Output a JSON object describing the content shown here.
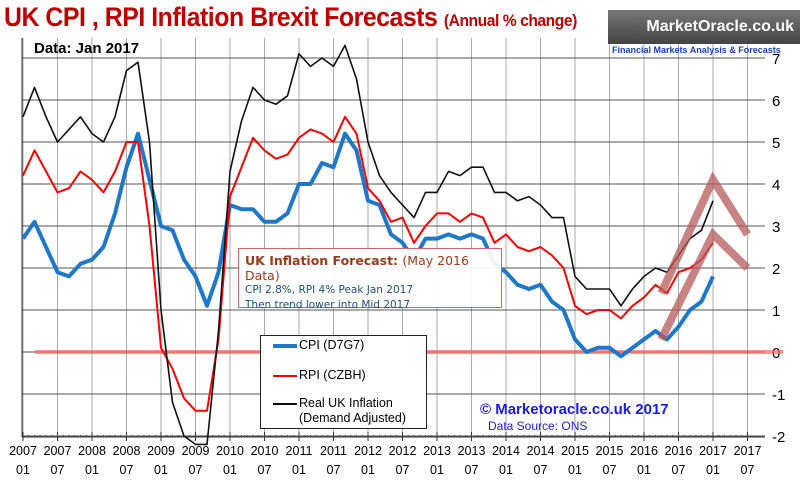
{
  "title": {
    "main": "UK CPI , RPI Inflation Brexit Forecasts",
    "sub": "(Annual % change)"
  },
  "data_label": "Data:  Jan 2017",
  "logo": {
    "name": "MarketOracle.co.uk",
    "tagline": "Financial Markets Analysis & Forecasts"
  },
  "forecast_box": {
    "heading": "UK Inflation Forecast:",
    "heading_note": "(May 2016 Data)",
    "line1": "CPI 2.8%, RPI 4% Peak Jan 2017",
    "line2": "Then trend lower into Mid 2017"
  },
  "copyright": "© Marketoracle.co.uk 2017",
  "source": "Data Source: ONS",
  "chart_data": {
    "type": "line",
    "title": "UK CPI , RPI Inflation Brexit Forecasts (Annual % change)",
    "ylim": [
      -2,
      7.4
    ],
    "yticks": [
      -2,
      -1,
      0,
      1,
      2,
      3,
      4,
      5,
      6,
      7
    ],
    "xtick_labels": [
      [
        "2007",
        "01"
      ],
      [
        "2007",
        "07"
      ],
      [
        "2008",
        "01"
      ],
      [
        "2008",
        "07"
      ],
      [
        "2009",
        "01"
      ],
      [
        "2009",
        "07"
      ],
      [
        "2010",
        "01"
      ],
      [
        "2010",
        "07"
      ],
      [
        "2011",
        "01"
      ],
      [
        "2011",
        "07"
      ],
      [
        "2012",
        "01"
      ],
      [
        "2012",
        "07"
      ],
      [
        "2013",
        "01"
      ],
      [
        "2013",
        "07"
      ],
      [
        "2014",
        "01"
      ],
      [
        "2014",
        "07"
      ],
      [
        "2015",
        "01"
      ],
      [
        "2015",
        "07"
      ],
      [
        "2016",
        "01"
      ],
      [
        "2016",
        "07"
      ],
      [
        "2017",
        "01"
      ],
      [
        "2017",
        "07"
      ]
    ],
    "grid": true,
    "legend_placement": "bottom-center",
    "x": [
      "2007-01",
      "2007-03",
      "2007-05",
      "2007-07",
      "2007-09",
      "2007-11",
      "2008-01",
      "2008-03",
      "2008-05",
      "2008-07",
      "2008-09",
      "2008-11",
      "2009-01",
      "2009-03",
      "2009-05",
      "2009-07",
      "2009-09",
      "2009-11",
      "2010-01",
      "2010-03",
      "2010-05",
      "2010-07",
      "2010-09",
      "2010-11",
      "2011-01",
      "2011-03",
      "2011-05",
      "2011-07",
      "2011-09",
      "2011-11",
      "2012-01",
      "2012-03",
      "2012-05",
      "2012-07",
      "2012-09",
      "2012-11",
      "2013-01",
      "2013-03",
      "2013-05",
      "2013-07",
      "2013-09",
      "2013-11",
      "2014-01",
      "2014-03",
      "2014-05",
      "2014-07",
      "2014-09",
      "2014-11",
      "2015-01",
      "2015-03",
      "2015-05",
      "2015-07",
      "2015-09",
      "2015-11",
      "2016-01",
      "2016-03",
      "2016-05",
      "2016-07",
      "2016-09",
      "2016-11",
      "2017-01"
    ],
    "series": [
      {
        "name": "CPI (D7G7)",
        "color": "#1f77c8",
        "values": [
          2.7,
          3.1,
          2.5,
          1.9,
          1.8,
          2.1,
          2.2,
          2.5,
          3.3,
          4.4,
          5.2,
          4.1,
          3.0,
          2.9,
          2.2,
          1.8,
          1.1,
          1.9,
          3.5,
          3.4,
          3.4,
          3.1,
          3.1,
          3.3,
          4.0,
          4.0,
          4.5,
          4.4,
          5.2,
          4.8,
          3.6,
          3.5,
          2.8,
          2.6,
          2.2,
          2.7,
          2.7,
          2.8,
          2.7,
          2.8,
          2.7,
          2.1,
          1.9,
          1.6,
          1.5,
          1.6,
          1.2,
          1.0,
          0.3,
          0.0,
          0.1,
          0.1,
          -0.1,
          0.1,
          0.3,
          0.5,
          0.3,
          0.6,
          1.0,
          1.2,
          1.8
        ]
      },
      {
        "name": "RPI (CZBH)",
        "color": "#ff0000",
        "values": [
          4.2,
          4.8,
          4.3,
          3.8,
          3.9,
          4.3,
          4.1,
          3.8,
          4.3,
          5.0,
          5.0,
          3.0,
          0.1,
          -0.4,
          -1.1,
          -1.4,
          -1.4,
          0.3,
          3.7,
          4.4,
          5.1,
          4.8,
          4.6,
          4.7,
          5.1,
          5.3,
          5.2,
          5.0,
          5.6,
          5.2,
          3.9,
          3.6,
          3.1,
          3.2,
          2.6,
          3.0,
          3.3,
          3.3,
          3.1,
          3.3,
          3.2,
          2.6,
          2.8,
          2.5,
          2.4,
          2.5,
          2.3,
          2.0,
          1.1,
          0.9,
          1.0,
          1.0,
          0.8,
          1.1,
          1.3,
          1.6,
          1.4,
          1.9,
          2.0,
          2.2,
          2.6
        ]
      },
      {
        "name": "Real UK Inflation (Demand Adjusted)",
        "color": "#111111",
        "values": [
          5.6,
          6.3,
          5.6,
          5.0,
          5.3,
          5.6,
          5.2,
          5.0,
          5.6,
          6.7,
          6.9,
          5.0,
          1.0,
          -1.2,
          -2.0,
          -2.2,
          -2.2,
          0.5,
          4.3,
          5.5,
          6.3,
          6.0,
          5.9,
          6.1,
          7.1,
          6.8,
          7.0,
          6.8,
          7.3,
          6.5,
          5.0,
          4.2,
          3.8,
          3.5,
          3.2,
          3.8,
          3.8,
          4.3,
          4.2,
          4.4,
          4.4,
          3.8,
          3.8,
          3.6,
          3.7,
          3.5,
          3.2,
          3.2,
          1.8,
          1.5,
          1.5,
          1.5,
          1.1,
          1.5,
          1.8,
          2.0,
          1.9,
          2.3,
          2.7,
          2.9,
          3.6
        ]
      }
    ],
    "forecasts": [
      {
        "series": "CPI",
        "color": "#b55a5a",
        "x": [
          "2016-04",
          "2017-01",
          "2017-07"
        ],
        "values": [
          0.3,
          2.8,
          2.0
        ]
      },
      {
        "series": "RPI",
        "color": "#b55a5a",
        "x": [
          "2016-04",
          "2017-01",
          "2017-07"
        ],
        "values": [
          1.4,
          4.1,
          2.8
        ]
      }
    ],
    "zero_line_color": "#ff6666"
  }
}
